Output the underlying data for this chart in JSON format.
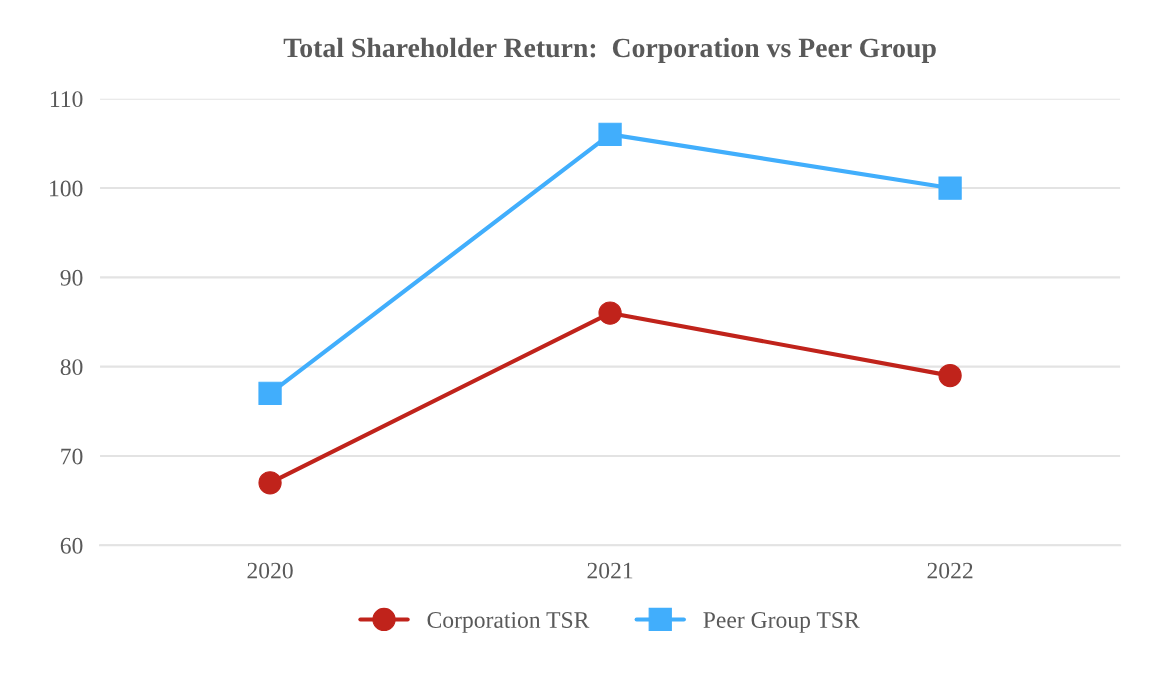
{
  "chart_data": {
    "type": "line",
    "title": "Total Shareholder Return:  Corporation vs Peer Group",
    "categories": [
      "2020",
      "2021",
      "2022"
    ],
    "series": [
      {
        "name": "Corporation TSR",
        "color": "#c0231b",
        "marker": "circle",
        "values": [
          67,
          86,
          79
        ]
      },
      {
        "name": "Peer Group TSR",
        "color": "#41aefc",
        "marker": "square",
        "values": [
          77,
          106,
          100
        ]
      }
    ],
    "ylim": [
      60,
      110
    ],
    "yticks": [
      60,
      70,
      80,
      90,
      100,
      110
    ],
    "grid": "y",
    "legend": "bottom"
  }
}
